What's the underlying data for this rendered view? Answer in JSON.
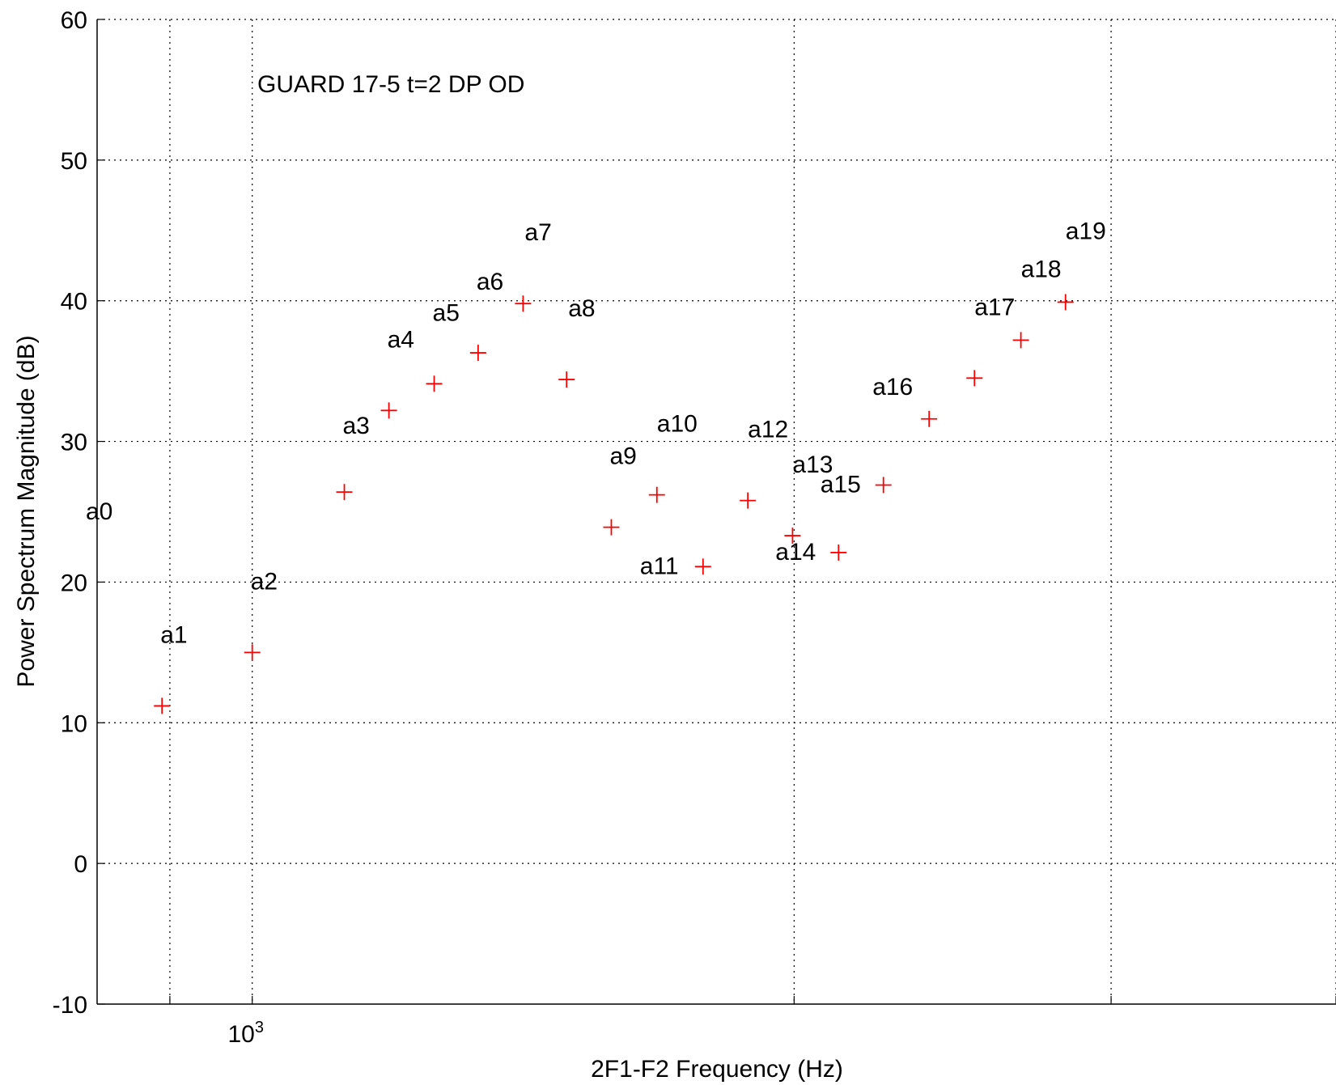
{
  "chart_data": {
    "type": "scatter",
    "title": "",
    "xlabel": "2F1-F2 Frequency (Hz)",
    "ylabel": "Power Spectrum Magnitude (dB)",
    "x_scale": "log",
    "xlim": [
      820,
      4000
    ],
    "ylim": [
      -10,
      60
    ],
    "y_ticks": [
      -10,
      0,
      10,
      20,
      30,
      40,
      50,
      60
    ],
    "x_tick_labels": [
      {
        "value": 1000,
        "base": "10",
        "exponent": "3"
      }
    ],
    "x_grid_values": [
      900,
      1000,
      2000,
      3000,
      4000
    ],
    "grid": true,
    "marker": "+",
    "marker_color": "#ff0000",
    "annotation": "GUARD 17-5 t=2 DP OD",
    "points": [
      {
        "label": "a0",
        "x": null,
        "y": null
      },
      {
        "label": "a1",
        "x": 891,
        "y": 11.2
      },
      {
        "label": "a2",
        "x": 1000,
        "y": 15.0
      },
      {
        "label": "a3",
        "x": 1125,
        "y": 26.4
      },
      {
        "label": "a4",
        "x": 1191,
        "y": 32.2
      },
      {
        "label": "a5",
        "x": 1262,
        "y": 34.1
      },
      {
        "label": "a6",
        "x": 1335,
        "y": 36.3
      },
      {
        "label": "a7",
        "x": 1414,
        "y": 39.8
      },
      {
        "label": "a8",
        "x": 1495,
        "y": 34.4
      },
      {
        "label": "a9",
        "x": 1583,
        "y": 23.9
      },
      {
        "label": "a10",
        "x": 1678,
        "y": 26.2
      },
      {
        "label": "a11",
        "x": 1780,
        "y": 21.1
      },
      {
        "label": "a12",
        "x": 1885,
        "y": 25.8
      },
      {
        "label": "a13",
        "x": 1996,
        "y": 23.3
      },
      {
        "label": "a14",
        "x": 2117,
        "y": 22.1
      },
      {
        "label": "a15",
        "x": 2242,
        "y": 26.9
      },
      {
        "label": "a16",
        "x": 2377,
        "y": 31.6
      },
      {
        "label": "a17",
        "x": 2519,
        "y": 34.5
      },
      {
        "label": "a18",
        "x": 2673,
        "y": 37.2
      },
      {
        "label": "a19",
        "x": 2830,
        "y": 39.9
      }
    ]
  }
}
